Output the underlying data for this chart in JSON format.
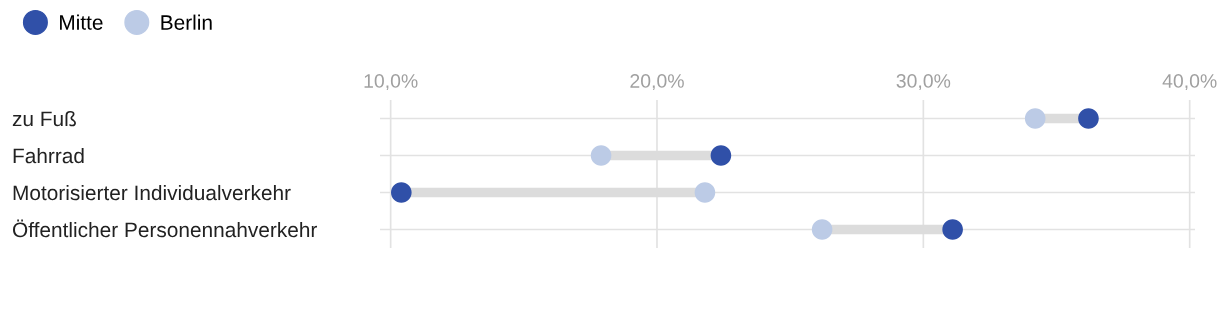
{
  "chart_data": {
    "type": "scatter",
    "orientation": "horizontal",
    "categories": [
      "zu Fuß",
      "Fahrrad",
      "Motorisierter Individualverkehr",
      "Öffentlicher Personennahverkehr"
    ],
    "series": [
      {
        "name": "Mitte",
        "color": "#3050a8",
        "values": [
          36.2,
          22.4,
          10.4,
          31.1
        ]
      },
      {
        "name": "Berlin",
        "color": "#bccbe6",
        "values": [
          34.2,
          17.9,
          21.8,
          26.2
        ]
      }
    ],
    "xlim": [
      9.6,
      40.2
    ],
    "xticks": [
      {
        "value": 10,
        "label": "10,0%"
      },
      {
        "value": 20,
        "label": "20,0%"
      },
      {
        "value": 30,
        "label": "30,0%"
      },
      {
        "value": 40,
        "label": "40,0%"
      }
    ],
    "grid": true,
    "legend": "top left",
    "marker": "circle"
  }
}
